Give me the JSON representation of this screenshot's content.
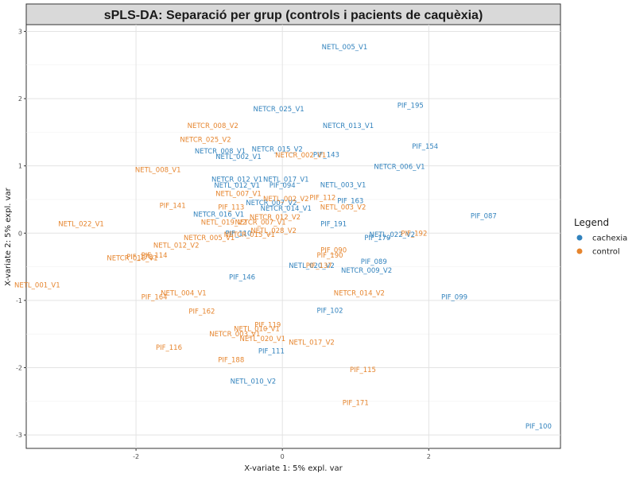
{
  "chart_data": {
    "type": "scatter",
    "title": "sPLS-DA: Separació per grup (controls i pacients de caquèxia)",
    "xlabel": "X-variate 1: 5% expl. var",
    "ylabel": "X-variate 2: 5% expl. var",
    "xlim": [
      -3.5,
      3.8
    ],
    "ylim": [
      -3.2,
      3.1
    ],
    "xticks": [
      -2,
      0,
      2
    ],
    "yticks": [
      -3,
      -2,
      -1,
      0,
      1,
      2,
      3
    ],
    "xtick_labels": [
      "-2",
      "0",
      "2"
    ],
    "ytick_labels": [
      "-3",
      "-2",
      "-1",
      "0",
      "1",
      "2",
      "3"
    ],
    "grid": true,
    "legend": {
      "title": "Legend",
      "position": "right",
      "entries": [
        {
          "name": "cachexia",
          "color": "#3182bd"
        },
        {
          "name": "control",
          "color": "#e6852e"
        }
      ]
    },
    "series": [
      {
        "name": "cachexia",
        "color": "#3182bd",
        "points": [
          {
            "label": "NETL_005_V1",
            "x": 0.85,
            "y": 2.77
          },
          {
            "label": "PIF_195",
            "x": 1.75,
            "y": 1.9
          },
          {
            "label": "NETCR_025_V1",
            "x": -0.05,
            "y": 1.85
          },
          {
            "label": "NETCR_013_V1",
            "x": 0.9,
            "y": 1.6
          },
          {
            "label": "PIF_154",
            "x": 1.95,
            "y": 1.29
          },
          {
            "label": "NETCR_015_V2",
            "x": -0.07,
            "y": 1.25
          },
          {
            "label": "NETCR_008_V1",
            "x": -0.85,
            "y": 1.22
          },
          {
            "label": "NETL_002_V1",
            "x": -0.6,
            "y": 1.14
          },
          {
            "label": "PIF_143",
            "x": 0.6,
            "y": 1.17
          },
          {
            "label": "NETCR_006_V1",
            "x": 1.6,
            "y": 0.99
          },
          {
            "label": "NETCR_012_V1",
            "x": -0.62,
            "y": 0.8
          },
          {
            "label": "NETL_017_V1",
            "x": 0.05,
            "y": 0.8
          },
          {
            "label": "NETL_012_V1",
            "x": -0.62,
            "y": 0.71
          },
          {
            "label": "PIF_094",
            "x": 0.0,
            "y": 0.71
          },
          {
            "label": "NETL_003_V1",
            "x": 0.83,
            "y": 0.72
          },
          {
            "label": "PIF_163",
            "x": 0.93,
            "y": 0.48
          },
          {
            "label": "NETCR_007_V2",
            "x": -0.15,
            "y": 0.45
          },
          {
            "label": "NETCR_014_V1",
            "x": 0.05,
            "y": 0.37
          },
          {
            "label": "NETCR_016_V1",
            "x": -0.87,
            "y": 0.28
          },
          {
            "label": "PIF_087",
            "x": 2.75,
            "y": 0.26
          },
          {
            "label": "PIF_191",
            "x": 0.7,
            "y": 0.14
          },
          {
            "label": "PIF_110",
            "x": -0.6,
            "y": 0.0
          },
          {
            "label": "NETL_022_V2",
            "x": 1.5,
            "y": -0.02
          },
          {
            "label": "PIF_179",
            "x": 1.3,
            "y": -0.07
          },
          {
            "label": "PIF_089",
            "x": 1.25,
            "y": -0.42
          },
          {
            "label": "NETL_020_V2",
            "x": 0.4,
            "y": -0.48
          },
          {
            "label": "NETCR_009_V2",
            "x": 1.15,
            "y": -0.55
          },
          {
            "label": "PIF_146",
            "x": -0.55,
            "y": -0.65
          },
          {
            "label": "PIF_099",
            "x": 2.35,
            "y": -0.95
          },
          {
            "label": "PIF_102",
            "x": 0.65,
            "y": -1.15
          },
          {
            "label": "PIF_111",
            "x": -0.15,
            "y": -1.75
          },
          {
            "label": "NETL_010_V2",
            "x": -0.4,
            "y": -2.2
          },
          {
            "label": "PIF_100",
            "x": 3.5,
            "y": -2.87
          }
        ]
      },
      {
        "name": "control",
        "color": "#e6852e",
        "points": [
          {
            "label": "NETCR_008_V2",
            "x": -0.95,
            "y": 1.6
          },
          {
            "label": "NETCR_025_V2",
            "x": -1.05,
            "y": 1.39
          },
          {
            "label": "NETCR_002_V1",
            "x": 0.25,
            "y": 1.16
          },
          {
            "label": "NETL_008_V1",
            "x": -1.7,
            "y": 0.94
          },
          {
            "label": "NETL_007_V1",
            "x": -0.6,
            "y": 0.59
          },
          {
            "label": "NETL_002_V2",
            "x": 0.05,
            "y": 0.51
          },
          {
            "label": "PIF_112",
            "x": 0.55,
            "y": 0.53
          },
          {
            "label": "NETL_003_V2",
            "x": 0.83,
            "y": 0.39
          },
          {
            "label": "PIF_141",
            "x": -1.5,
            "y": 0.41
          },
          {
            "label": "PIF_113",
            "x": -0.7,
            "y": 0.39
          },
          {
            "label": "NETCR_012_V2",
            "x": -0.1,
            "y": 0.24
          },
          {
            "label": "NETL_019_V2",
            "x": -0.8,
            "y": 0.16
          },
          {
            "label": "NETCR_007_V1",
            "x": -0.3,
            "y": 0.16
          },
          {
            "label": "NETL_022_V1",
            "x": -2.75,
            "y": 0.14
          },
          {
            "label": "NETL_028_V2",
            "x": -0.12,
            "y": 0.04
          },
          {
            "label": "NETCR_015_V1",
            "x": -0.45,
            "y": -0.02
          },
          {
            "label": "NETCR_005_V1",
            "x": -1.0,
            "y": -0.07
          },
          {
            "label": "PIF_192",
            "x": 1.8,
            "y": 0.0
          },
          {
            "label": "NETL_012_V2",
            "x": -1.45,
            "y": -0.18
          },
          {
            "label": "PIF_090",
            "x": 0.7,
            "y": -0.25
          },
          {
            "label": "PIF_190",
            "x": 0.65,
            "y": -0.33
          },
          {
            "label": "PIF_114",
            "x": -1.75,
            "y": -0.33
          },
          {
            "label": "PIF_178",
            "x": -1.95,
            "y": -0.35
          },
          {
            "label": "NETCR_018_V1",
            "x": -2.05,
            "y": -0.37
          },
          {
            "label": "PIF_137",
            "x": 0.5,
            "y": -0.48
          },
          {
            "label": "NETL_001_V1",
            "x": -3.35,
            "y": -0.77
          },
          {
            "label": "NETL_004_V1",
            "x": -1.35,
            "y": -0.89
          },
          {
            "label": "PIF_164",
            "x": -1.75,
            "y": -0.95
          },
          {
            "label": "NETCR_014_V2",
            "x": 1.05,
            "y": -0.89
          },
          {
            "label": "PIF_162",
            "x": -1.1,
            "y": -1.16
          },
          {
            "label": "PIF_119",
            "x": -0.2,
            "y": -1.36
          },
          {
            "label": "NETL_010_V1",
            "x": -0.35,
            "y": -1.42
          },
          {
            "label": "NETCR_003_V1",
            "x": -0.65,
            "y": -1.5
          },
          {
            "label": "NETL_020_V1",
            "x": -0.27,
            "y": -1.57
          },
          {
            "label": "NETL_017_V2",
            "x": 0.4,
            "y": -1.62
          },
          {
            "label": "PIF_116",
            "x": -1.55,
            "y": -1.7
          },
          {
            "label": "PIF_188",
            "x": -0.7,
            "y": -1.88
          },
          {
            "label": "PIF_115",
            "x": 1.1,
            "y": -2.03
          },
          {
            "label": "PIF_171",
            "x": 1.0,
            "y": -2.52
          }
        ]
      }
    ]
  }
}
